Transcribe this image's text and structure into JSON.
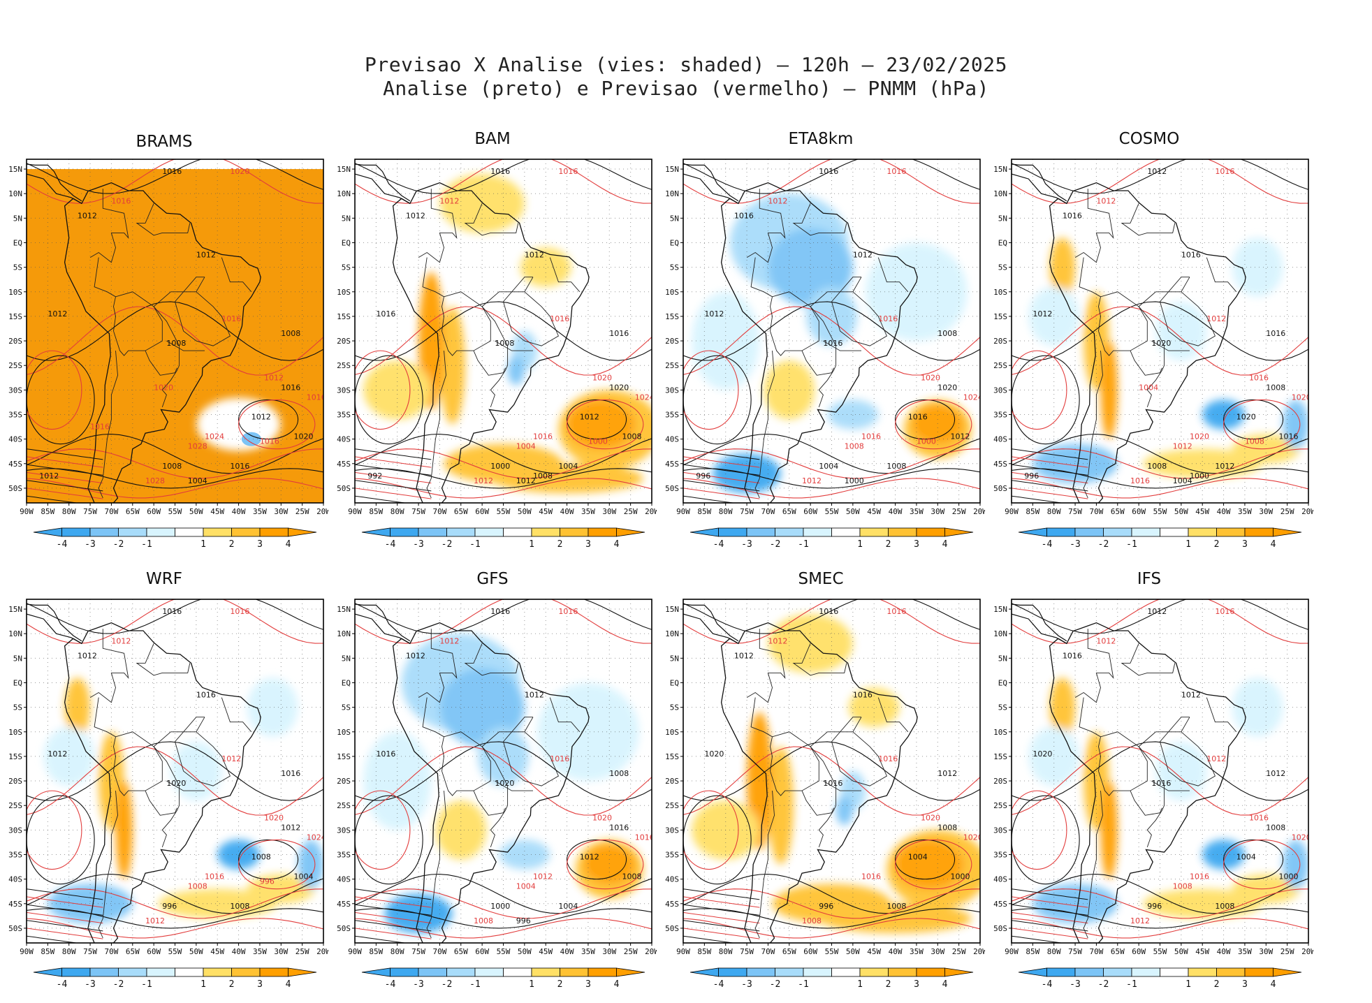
{
  "header": {
    "title_line1": "Previsao X Analise (vies: shaded) — 120h — 23/02/2025",
    "title_line2": "Analise (preto) e Previsao (vermelho) — PNMM (hPa)"
  },
  "axes": {
    "lon_labels": [
      "90W",
      "85W",
      "80W",
      "75W",
      "70W",
      "65W",
      "60W",
      "55W",
      "50W",
      "45W",
      "40W",
      "35W",
      "30W",
      "25W",
      "20W"
    ],
    "lat_labels": [
      "15N",
      "10N",
      "5N",
      "EQ",
      "5S",
      "10S",
      "15S",
      "20S",
      "25S",
      "30S",
      "35S",
      "40S",
      "45S",
      "50S"
    ]
  },
  "colorbar": {
    "labels": [
      "-4",
      "-3",
      "-2",
      "-1",
      "1",
      "2",
      "3",
      "4"
    ],
    "colors": [
      "#3ea8f0",
      "#7cc4f6",
      "#a8dcfa",
      "#d8f4fe",
      "#ffffff",
      "#fff5a8",
      "#ffe066",
      "#ffc233",
      "#ff9f00"
    ]
  },
  "colors": {
    "analysis_contour": "#111111",
    "forecast_contour": "#e23c3c",
    "land_ocean_bg": "#ffffff",
    "brams_fill": "#f59a0a"
  },
  "panels": [
    {
      "id": "brams",
      "name": "BRAMS",
      "theme": "brams",
      "labels_black": [
        "1016",
        "1012",
        "1012",
        "1012",
        "1008",
        "1008",
        "1016",
        "1012",
        "1020",
        "1016",
        "1008",
        "1004",
        "1012"
      ],
      "labels_red": [
        "1020",
        "1016",
        "1016",
        "1012",
        "1016",
        "1024",
        "1028",
        "1028",
        "1016",
        "1020",
        "1016"
      ]
    },
    {
      "id": "bam",
      "name": "BAM",
      "theme": "warm",
      "labels_black": [
        "1016",
        "1012",
        "1012",
        "1016",
        "1008",
        "1016",
        "1020",
        "1012",
        "1008",
        "1004",
        "1000",
        "1012",
        "992",
        "1008"
      ],
      "labels_red": [
        "1016",
        "1012",
        "1016",
        "1020",
        "1024",
        "1016",
        "1012",
        "1004",
        "1000"
      ]
    },
    {
      "id": "eta8km",
      "name": "ETA8km",
      "theme": "cool",
      "labels_black": [
        "1016",
        "1016",
        "1012",
        "1012",
        "1016",
        "1008",
        "1020",
        "1016",
        "1012",
        "1008",
        "1004",
        "1000",
        "996"
      ],
      "labels_red": [
        "1016",
        "1012",
        "1016",
        "1020",
        "1024",
        "1016",
        "1012",
        "1008",
        "1000"
      ]
    },
    {
      "id": "cosmo",
      "name": "COSMO",
      "theme": "mixed",
      "labels_black": [
        "1012",
        "1016",
        "1016",
        "1012",
        "1020",
        "1016",
        "1008",
        "1020",
        "1016",
        "1012",
        "1008",
        "1004",
        "996",
        "1000"
      ],
      "labels_red": [
        "1016",
        "1012",
        "1012",
        "1016",
        "1020",
        "1020",
        "1016",
        "1012",
        "1008",
        "1004"
      ]
    },
    {
      "id": "wrf",
      "name": "WRF",
      "theme": "mixed",
      "labels_black": [
        "1016",
        "1012",
        "1016",
        "1012",
        "1020",
        "1016",
        "1012",
        "1008",
        "1004",
        "1008",
        "996"
      ],
      "labels_red": [
        "1016",
        "1012",
        "1012",
        "1020",
        "1024",
        "1016",
        "1012",
        "1008",
        "996"
      ]
    },
    {
      "id": "gfs",
      "name": "GFS",
      "theme": "cool",
      "labels_black": [
        "1016",
        "1012",
        "1012",
        "1016",
        "1020",
        "1008",
        "1016",
        "1012",
        "1008",
        "1004",
        "1000",
        "996"
      ],
      "labels_red": [
        "1016",
        "1012",
        "1016",
        "1020",
        "1016",
        "1012",
        "1008",
        "1004"
      ]
    },
    {
      "id": "smec",
      "name": "SMEC",
      "theme": "warm",
      "labels_black": [
        "1016",
        "1012",
        "1016",
        "1020",
        "1016",
        "1012",
        "1008",
        "1004",
        "1000",
        "1008",
        "996"
      ],
      "labels_red": [
        "1016",
        "1012",
        "1016",
        "1020",
        "1020",
        "1016",
        "1008"
      ]
    },
    {
      "id": "ifs",
      "name": "IFS",
      "theme": "mixed",
      "labels_black": [
        "1012",
        "1016",
        "1012",
        "1020",
        "1016",
        "1012",
        "1008",
        "1004",
        "1000",
        "1008",
        "996"
      ],
      "labels_red": [
        "1016",
        "1012",
        "1012",
        "1016",
        "1020",
        "1016",
        "1012",
        "1008"
      ]
    }
  ]
}
